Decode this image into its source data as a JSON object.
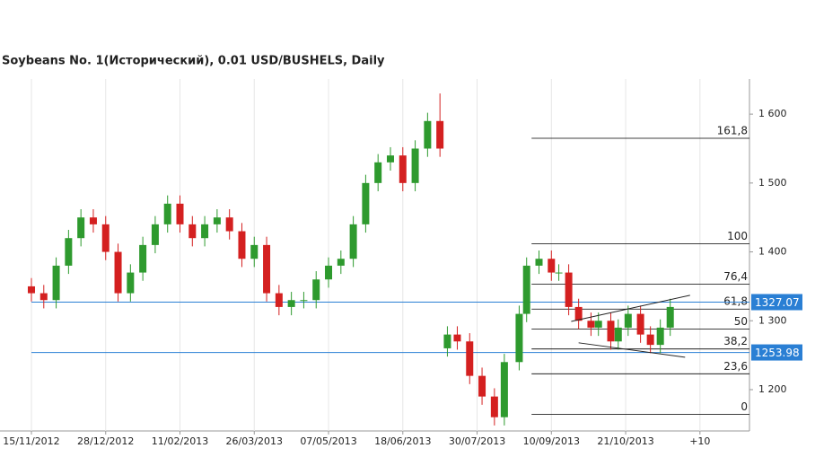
{
  "chart_data": {
    "type": "candlestick",
    "title": "Soybeans  No. 1(Исторический), 0.01 USD/BUSHELS, Daily",
    "x": [
      0,
      5,
      10,
      15,
      20,
      25,
      30,
      35,
      40,
      45,
      50,
      55,
      60,
      65,
      70,
      75,
      80,
      85,
      90,
      95,
      100,
      105,
      110,
      115,
      120,
      125,
      130,
      135,
      140,
      145,
      150,
      155,
      160,
      165,
      168,
      172,
      177,
      182,
      187,
      191,
      197,
      200,
      205,
      210,
      213,
      217,
      221,
      226,
      229,
      234,
      237,
      241,
      246,
      250,
      254,
      258
    ],
    "open": [
      1350,
      1340,
      1330,
      1380,
      1420,
      1450,
      1440,
      1400,
      1340,
      1370,
      1410,
      1440,
      1470,
      1440,
      1420,
      1440,
      1450,
      1430,
      1390,
      1410,
      1340,
      1320,
      1330,
      1330,
      1360,
      1380,
      1390,
      1440,
      1500,
      1530,
      1540,
      1500,
      1550,
      1590,
      1260,
      1280,
      1270,
      1220,
      1190,
      1160,
      1240,
      1310,
      1380,
      1390,
      1370,
      1370,
      1320,
      1300,
      1290,
      1300,
      1270,
      1290,
      1310,
      1280,
      1265,
      1290
    ],
    "high": [
      1362,
      1352,
      1392,
      1432,
      1462,
      1462,
      1452,
      1412,
      1382,
      1422,
      1452,
      1482,
      1482,
      1452,
      1452,
      1462,
      1462,
      1442,
      1422,
      1422,
      1352,
      1342,
      1342,
      1372,
      1392,
      1402,
      1452,
      1512,
      1542,
      1552,
      1552,
      1562,
      1602,
      1630,
      1292,
      1292,
      1282,
      1232,
      1202,
      1252,
      1322,
      1392,
      1402,
      1402,
      1382,
      1382,
      1332,
      1312,
      1312,
      1312,
      1302,
      1322,
      1322,
      1292,
      1302,
      1332
    ],
    "low": [
      1328,
      1318,
      1318,
      1368,
      1408,
      1428,
      1388,
      1328,
      1328,
      1358,
      1398,
      1428,
      1428,
      1408,
      1408,
      1428,
      1418,
      1378,
      1378,
      1328,
      1308,
      1308,
      1318,
      1318,
      1348,
      1368,
      1378,
      1428,
      1488,
      1518,
      1488,
      1488,
      1538,
      1538,
      1248,
      1258,
      1208,
      1178,
      1148,
      1148,
      1228,
      1298,
      1368,
      1358,
      1358,
      1308,
      1288,
      1278,
      1278,
      1258,
      1258,
      1278,
      1268,
      1253,
      1253,
      1278
    ],
    "close": [
      1340,
      1330,
      1380,
      1420,
      1450,
      1440,
      1400,
      1340,
      1370,
      1410,
      1440,
      1470,
      1440,
      1420,
      1440,
      1450,
      1430,
      1390,
      1410,
      1340,
      1320,
      1330,
      1330,
      1360,
      1380,
      1390,
      1440,
      1500,
      1530,
      1540,
      1500,
      1550,
      1590,
      1550,
      1280,
      1270,
      1220,
      1190,
      1160,
      1240,
      1310,
      1380,
      1390,
      1370,
      1370,
      1320,
      1300,
      1290,
      1300,
      1270,
      1290,
      1310,
      1280,
      1265,
      1290,
      1320
    ],
    "up_color": "#2e9a2e",
    "down_color": "#d42020",
    "xlim": [
      -1,
      289
    ],
    "ylim": [
      1140,
      1651
    ],
    "xticks": [
      {
        "value": 0,
        "label": "15/11/2012"
      },
      {
        "value": 30,
        "label": "28/12/2012"
      },
      {
        "value": 60,
        "label": "11/02/2013"
      },
      {
        "value": 90,
        "label": "26/03/2013"
      },
      {
        "value": 120,
        "label": "07/05/2013"
      },
      {
        "value": 150,
        "label": "18/06/2013"
      },
      {
        "value": 180,
        "label": "30/07/2013"
      },
      {
        "value": 210,
        "label": "10/09/2013"
      },
      {
        "value": 240,
        "label": "21/10/2013"
      },
      {
        "value": 270,
        "label": "+10"
      }
    ],
    "yticks": [
      {
        "value": 1200,
        "label": "1 200"
      },
      {
        "value": 1300,
        "label": "1 300"
      },
      {
        "value": 1400,
        "label": "1 400"
      },
      {
        "value": 1500,
        "label": "1 500"
      },
      {
        "value": 1600,
        "label": "1 600"
      }
    ],
    "grid": true,
    "fib_start": 202,
    "fib_levels": [
      {
        "value": 1565,
        "label": "161,8"
      },
      {
        "value": 1412,
        "label": "100"
      },
      {
        "value": 1353,
        "label": "76,4"
      },
      {
        "value": 1317,
        "label": "61,8"
      },
      {
        "value": 1288,
        "label": "50"
      },
      {
        "value": 1259,
        "label": "38,2"
      },
      {
        "value": 1223,
        "label": "23,6"
      },
      {
        "value": 1164,
        "label": "0"
      }
    ],
    "price_lines": [
      1327.07,
      1253.98
    ],
    "price_line_color": "#2a7fd4",
    "trendlines": [
      {
        "x": [
          218,
          266
        ],
        "y": [
          1299,
          1337
        ]
      },
      {
        "x": [
          221,
          264
        ],
        "y": [
          1268,
          1247
        ]
      }
    ]
  }
}
